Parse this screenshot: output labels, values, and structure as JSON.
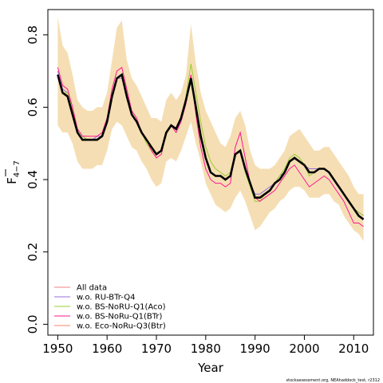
{
  "chart_data": {
    "type": "line",
    "xlabel": "Year",
    "ylabel_main": "F",
    "ylabel_sub": "4−7",
    "credit": "stockassessment.org, NEAhaddock_test, r2312",
    "xlim": [
      1948,
      2014
    ],
    "ylim": [
      -0.03,
      0.87
    ],
    "x_ticks": [
      1950,
      1960,
      1970,
      1980,
      1990,
      2000,
      2010
    ],
    "y_ticks": [
      0.0,
      0.2,
      0.4,
      0.6,
      0.8
    ],
    "y_tick_labels": [
      "0.0",
      "0.2",
      "0.4",
      "0.6",
      "0.8"
    ],
    "grid": false,
    "legend_position": "bottom-left",
    "band_color": "#f5deb3",
    "x": [
      1950,
      1951,
      1952,
      1953,
      1954,
      1955,
      1956,
      1957,
      1958,
      1959,
      1960,
      1961,
      1962,
      1963,
      1964,
      1965,
      1966,
      1967,
      1968,
      1969,
      1970,
      1971,
      1972,
      1973,
      1974,
      1975,
      1976,
      1977,
      1978,
      1979,
      1980,
      1981,
      1982,
      1983,
      1984,
      1985,
      1986,
      1987,
      1988,
      1989,
      1990,
      1991,
      1992,
      1993,
      1994,
      1995,
      1996,
      1997,
      1998,
      1999,
      2000,
      2001,
      2002,
      2003,
      2004,
      2005,
      2006,
      2007,
      2008,
      2009,
      2010,
      2011,
      2012
    ],
    "band_upper": [
      0.85,
      0.77,
      0.75,
      0.69,
      0.62,
      0.6,
      0.59,
      0.59,
      0.6,
      0.6,
      0.64,
      0.73,
      0.82,
      0.84,
      0.73,
      0.68,
      0.66,
      0.63,
      0.6,
      0.57,
      0.57,
      0.56,
      0.62,
      0.64,
      0.62,
      0.64,
      0.69,
      0.83,
      0.72,
      0.64,
      0.59,
      0.56,
      0.53,
      0.5,
      0.49,
      0.52,
      0.57,
      0.59,
      0.55,
      0.48,
      0.44,
      0.43,
      0.43,
      0.43,
      0.44,
      0.46,
      0.48,
      0.52,
      0.53,
      0.54,
      0.52,
      0.5,
      0.48,
      0.48,
      0.49,
      0.49,
      0.47,
      0.45,
      0.43,
      0.41,
      0.38,
      0.36,
      0.36
    ],
    "band_lower": [
      0.55,
      0.53,
      0.53,
      0.5,
      0.45,
      0.43,
      0.43,
      0.43,
      0.44,
      0.44,
      0.48,
      0.54,
      0.56,
      0.55,
      0.52,
      0.49,
      0.48,
      0.45,
      0.43,
      0.4,
      0.38,
      0.39,
      0.45,
      0.46,
      0.45,
      0.48,
      0.52,
      0.56,
      0.5,
      0.45,
      0.39,
      0.36,
      0.33,
      0.32,
      0.31,
      0.32,
      0.35,
      0.37,
      0.34,
      0.3,
      0.26,
      0.27,
      0.29,
      0.31,
      0.32,
      0.34,
      0.35,
      0.37,
      0.38,
      0.38,
      0.37,
      0.35,
      0.35,
      0.35,
      0.36,
      0.36,
      0.34,
      0.33,
      0.3,
      0.28,
      0.26,
      0.25,
      0.23
    ],
    "estimate": [
      0.69,
      0.64,
      0.63,
      0.58,
      0.53,
      0.51,
      0.51,
      0.51,
      0.51,
      0.52,
      0.56,
      0.63,
      0.68,
      0.69,
      0.63,
      0.58,
      0.56,
      0.53,
      0.51,
      0.49,
      0.47,
      0.48,
      0.53,
      0.55,
      0.54,
      0.57,
      0.62,
      0.68,
      0.6,
      0.52,
      0.46,
      0.42,
      0.41,
      0.41,
      0.4,
      0.41,
      0.47,
      0.48,
      0.43,
      0.39,
      0.35,
      0.35,
      0.36,
      0.37,
      0.39,
      0.4,
      0.42,
      0.45,
      0.46,
      0.45,
      0.44,
      0.42,
      0.42,
      0.43,
      0.43,
      0.42,
      0.4,
      0.38,
      0.36,
      0.34,
      0.32,
      0.3,
      0.29
    ],
    "series": [
      {
        "name": "All data",
        "color": "#f08080",
        "values": [
          0.69,
          0.64,
          0.63,
          0.58,
          0.53,
          0.51,
          0.51,
          0.51,
          0.51,
          0.52,
          0.56,
          0.63,
          0.68,
          0.69,
          0.63,
          0.58,
          0.56,
          0.53,
          0.51,
          0.49,
          0.47,
          0.48,
          0.53,
          0.55,
          0.54,
          0.57,
          0.62,
          0.68,
          0.6,
          0.52,
          0.46,
          0.42,
          0.41,
          0.41,
          0.4,
          0.41,
          0.47,
          0.48,
          0.43,
          0.39,
          0.35,
          0.35,
          0.36,
          0.37,
          0.39,
          0.4,
          0.42,
          0.45,
          0.46,
          0.45,
          0.44,
          0.42,
          0.42,
          0.43,
          0.43,
          0.42,
          0.4,
          0.38,
          0.36,
          0.34,
          0.32,
          0.3,
          0.29
        ]
      },
      {
        "name": "w.o. RU-BTr-Q4",
        "color": "#9370db",
        "values": [
          0.7,
          0.65,
          0.64,
          0.59,
          0.54,
          0.52,
          0.51,
          0.51,
          0.52,
          0.52,
          0.57,
          0.63,
          0.68,
          0.68,
          0.63,
          0.58,
          0.56,
          0.53,
          0.51,
          0.48,
          0.47,
          0.48,
          0.53,
          0.55,
          0.54,
          0.57,
          0.62,
          0.67,
          0.6,
          0.52,
          0.46,
          0.42,
          0.41,
          0.41,
          0.4,
          0.41,
          0.47,
          0.48,
          0.43,
          0.39,
          0.36,
          0.36,
          0.37,
          0.38,
          0.39,
          0.41,
          0.42,
          0.45,
          0.46,
          0.45,
          0.44,
          0.43,
          0.43,
          0.43,
          0.43,
          0.42,
          0.4,
          0.38,
          0.36,
          0.34,
          0.32,
          0.31,
          0.3
        ]
      },
      {
        "name": "w.o. BS-NoRU-Q1(Aco)",
        "color": "#9acd32",
        "values": [
          0.69,
          0.64,
          0.64,
          0.59,
          0.54,
          0.52,
          0.51,
          0.51,
          0.51,
          0.52,
          0.56,
          0.63,
          0.68,
          0.69,
          0.63,
          0.58,
          0.56,
          0.53,
          0.5,
          0.48,
          0.47,
          0.48,
          0.53,
          0.55,
          0.54,
          0.57,
          0.63,
          0.72,
          0.64,
          0.56,
          0.49,
          0.45,
          0.43,
          0.42,
          0.41,
          0.42,
          0.47,
          0.48,
          0.42,
          0.38,
          0.34,
          0.34,
          0.36,
          0.37,
          0.39,
          0.41,
          0.43,
          0.46,
          0.47,
          0.46,
          0.44,
          0.41,
          0.42,
          0.43,
          0.43,
          0.42,
          0.4,
          0.38,
          0.36,
          0.34,
          0.32,
          0.31,
          0.3
        ]
      },
      {
        "name": "w.o. BS-NoRu-Q1(BTr)",
        "color": "#ff1493",
        "values": [
          0.71,
          0.66,
          0.65,
          0.6,
          0.54,
          0.52,
          0.52,
          0.52,
          0.52,
          0.53,
          0.57,
          0.65,
          0.7,
          0.71,
          0.65,
          0.59,
          0.57,
          0.53,
          0.51,
          0.48,
          0.46,
          0.47,
          0.53,
          0.55,
          0.53,
          0.56,
          0.61,
          0.69,
          0.58,
          0.49,
          0.43,
          0.4,
          0.39,
          0.39,
          0.38,
          0.39,
          0.49,
          0.53,
          0.46,
          0.39,
          0.35,
          0.34,
          0.35,
          0.36,
          0.37,
          0.39,
          0.41,
          0.43,
          0.44,
          0.42,
          0.4,
          0.38,
          0.39,
          0.4,
          0.41,
          0.4,
          0.38,
          0.36,
          0.34,
          0.31,
          0.28,
          0.28,
          0.27
        ]
      },
      {
        "name": "w.o. Eco-NoRu-Q3(Btr)",
        "color": "#fa8072",
        "values": [
          0.69,
          0.64,
          0.63,
          0.58,
          0.53,
          0.51,
          0.51,
          0.51,
          0.51,
          0.52,
          0.56,
          0.63,
          0.68,
          0.69,
          0.63,
          0.58,
          0.56,
          0.53,
          0.51,
          0.49,
          0.47,
          0.48,
          0.53,
          0.55,
          0.54,
          0.57,
          0.62,
          0.68,
          0.6,
          0.52,
          0.46,
          0.42,
          0.41,
          0.41,
          0.4,
          0.41,
          0.47,
          0.48,
          0.43,
          0.39,
          0.35,
          0.35,
          0.36,
          0.37,
          0.39,
          0.4,
          0.42,
          0.45,
          0.46,
          0.45,
          0.44,
          0.42,
          0.42,
          0.43,
          0.43,
          0.42,
          0.4,
          0.38,
          0.36,
          0.34,
          0.32,
          0.3,
          0.29
        ]
      }
    ]
  }
}
